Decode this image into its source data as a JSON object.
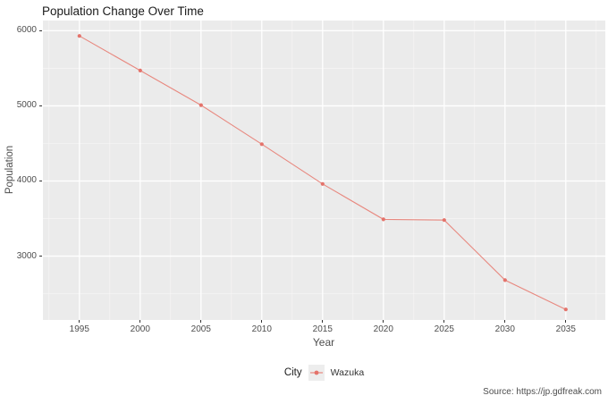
{
  "title": "Population Change Over Time",
  "source_note": "Source: https://jp.gdfreak.com",
  "legend": {
    "title": "City",
    "series_label": "Wazuka"
  },
  "colors": {
    "series_point": "#e4736b",
    "series_line": "#e8887f",
    "panel_bg": "#ebebeb",
    "grid_major": "#ffffff",
    "grid_minor": "#f7f6f6",
    "tick_text": "#4d4d4d",
    "tick_mark": "#333333"
  },
  "chart_data": {
    "type": "line",
    "title": "Population Change Over Time",
    "xlabel": "Year",
    "ylabel": "Population",
    "x": [
      1995,
      2000,
      2005,
      2010,
      2015,
      2020,
      2025,
      2030,
      2035
    ],
    "series": [
      {
        "name": "Wazuka",
        "values": [
          5930,
          5470,
          5010,
          4490,
          3960,
          3490,
          3480,
          2680,
          2290
        ]
      }
    ],
    "x_ticks": [
      1995,
      2000,
      2005,
      2010,
      2015,
      2020,
      2025,
      2030,
      2035
    ],
    "y_ticks": [
      3000,
      4000,
      5000,
      6000
    ],
    "xlim": [
      1992.0,
      2038.25
    ],
    "ylim": [
      2150,
      6135
    ],
    "grid": true,
    "legend_position": "bottom",
    "source": "Source: https://jp.gdfreak.com"
  }
}
